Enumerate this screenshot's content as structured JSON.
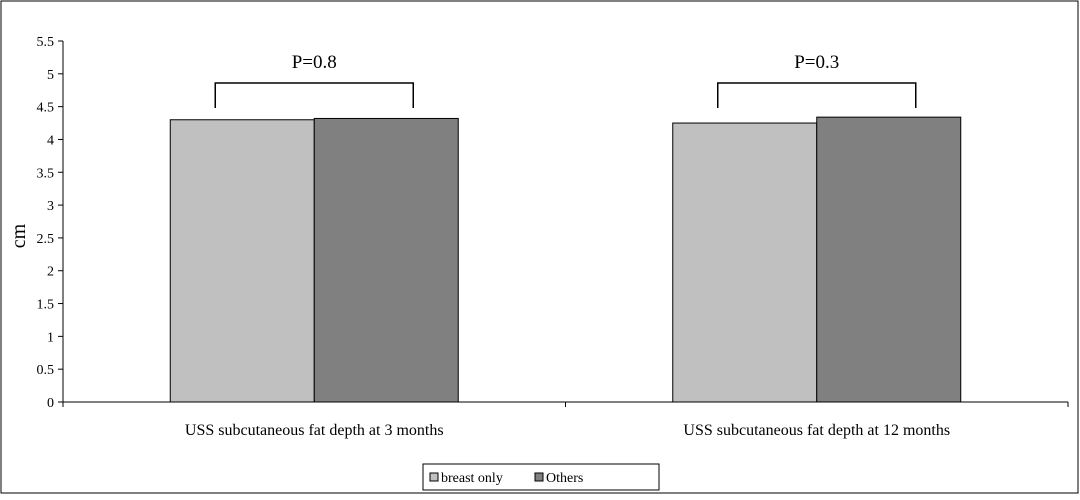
{
  "chart_data": {
    "type": "bar",
    "title": "",
    "xlabel": "",
    "ylabel": "cm",
    "ylim": [
      0,
      5.5
    ],
    "yticks": [
      "0",
      "0.5",
      "1",
      "1.5",
      "2",
      "2.5",
      "3",
      "3.5",
      "4",
      "4.5",
      "5",
      "5.5"
    ],
    "categories": [
      "USS subcutaneous fat depth at 3 months",
      "USS subcutaneous fat depth  at 12 months"
    ],
    "series": [
      {
        "name": "breast only",
        "values": [
          4.3,
          4.25
        ],
        "color": "#c0c0c0"
      },
      {
        "name": "Others",
        "values": [
          4.32,
          4.34
        ],
        "color": "#808080"
      }
    ],
    "annotations": [
      "P=0.8",
      "P=0.3"
    ],
    "grid": false,
    "legend_position": "bottom-center"
  }
}
